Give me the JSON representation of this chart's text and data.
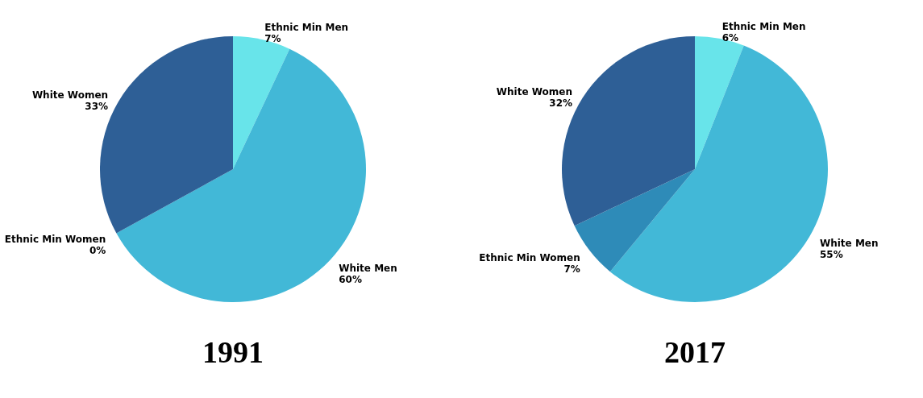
{
  "chart_data": [
    {
      "type": "pie",
      "title": "1991",
      "categories": [
        "Ethnic Min Men",
        "White Men",
        "Ethnic Min Women",
        "White Women"
      ],
      "values": [
        7,
        60,
        0,
        33
      ],
      "value_labels": [
        "7%",
        "60%",
        "0%",
        "33%"
      ],
      "colors": [
        "#68e4ea",
        "#42b8d7",
        "#2e8bb8",
        "#2e5f96"
      ],
      "legend": false
    },
    {
      "type": "pie",
      "title": "2017",
      "categories": [
        "Ethnic Min Men",
        "White Men",
        "Ethnic Min Women",
        "White Women"
      ],
      "values": [
        6,
        55,
        7,
        32
      ],
      "value_labels": [
        "6%",
        "55%",
        "7%",
        "32%"
      ],
      "colors": [
        "#68e4ea",
        "#42b8d7",
        "#2e8bb8",
        "#2e5f96"
      ],
      "legend": false
    }
  ]
}
